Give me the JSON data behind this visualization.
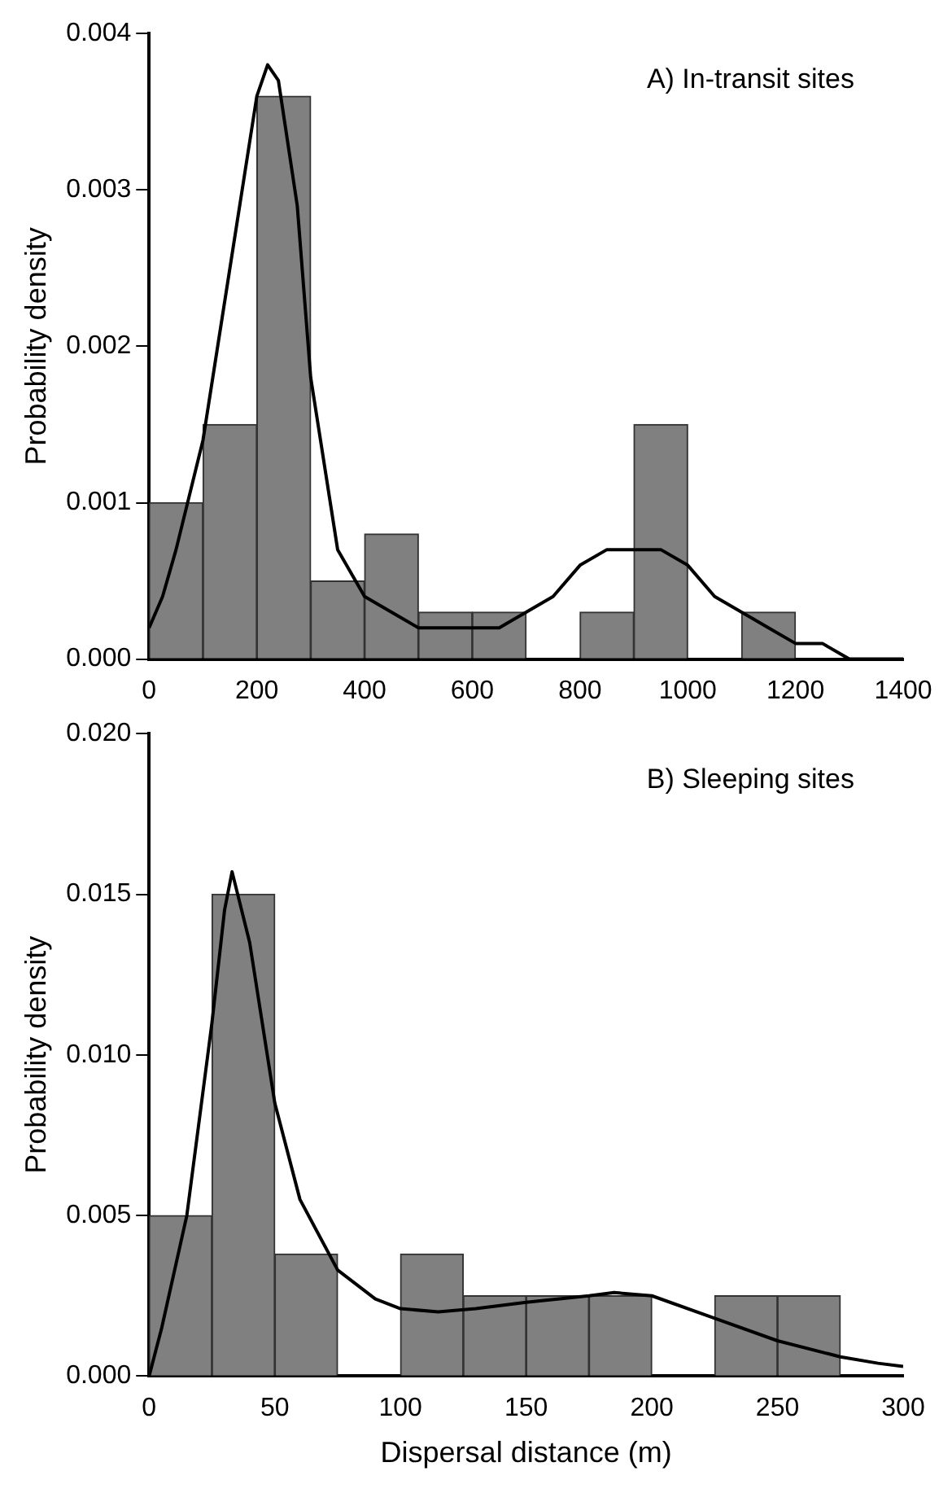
{
  "chart_data": [
    {
      "type": "histogram",
      "title": "A) In-transit sites",
      "ylabel": "Probability density",
      "bins": [
        0,
        100,
        200,
        300,
        400,
        500,
        600,
        700,
        800,
        900,
        1000,
        1100,
        1200
      ],
      "values": [
        0.001,
        0.0015,
        0.0036,
        0.0005,
        0.0008,
        0.0003,
        0.0003,
        0,
        0.0003,
        0.0015,
        0,
        0.0003
      ],
      "color": "#808080",
      "series": [
        {
          "type": "line",
          "color": "#000000",
          "x": [
            0,
            25,
            50,
            100,
            150,
            200,
            220,
            240,
            275,
            300,
            350,
            400,
            450,
            500,
            550,
            600,
            650,
            700,
            750,
            800,
            850,
            900,
            950,
            1000,
            1050,
            1100,
            1150,
            1200,
            1250,
            1300,
            1400
          ],
          "values": [
            0.0002,
            0.0004,
            0.0007,
            0.0014,
            0.0025,
            0.0036,
            0.0038,
            0.0037,
            0.0029,
            0.0018,
            0.0007,
            0.0004,
            0.0003,
            0.0002,
            0.0002,
            0.0002,
            0.0002,
            0.0003,
            0.0004,
            0.0006,
            0.0007,
            0.0007,
            0.0007,
            0.0006,
            0.0004,
            0.0003,
            0.0002,
            0.0001,
            0.0001,
            0,
            0
          ]
        }
      ],
      "xlim": [
        0,
        1400
      ],
      "xticks": [
        0,
        200,
        400,
        600,
        800,
        1000,
        1200,
        1400
      ],
      "ylim": [
        0,
        0.004
      ],
      "yticks": [
        {
          "value": 0,
          "label": "0.000"
        },
        {
          "value": 0.001,
          "label": "0.001"
        },
        {
          "value": 0.002,
          "label": "0.002"
        },
        {
          "value": 0.003,
          "label": "0.003"
        },
        {
          "value": 0.004,
          "label": "0.004"
        }
      ]
    },
    {
      "type": "histogram",
      "title": "B) Sleeping sites",
      "xlabel": "Dispersal distance (m)",
      "ylabel": "Probability density",
      "bins": [
        0,
        25,
        50,
        75,
        100,
        125,
        150,
        175,
        200,
        225,
        250,
        275
      ],
      "values": [
        0.005,
        0.015,
        0.0038,
        0,
        0.0038,
        0.0025,
        0.0025,
        0.0025,
        0,
        0.0025,
        0.0025
      ],
      "color": "#808080",
      "series": [
        {
          "type": "line",
          "color": "#000000",
          "x": [
            0,
            5,
            15,
            25,
            30,
            33,
            40,
            50,
            60,
            75,
            90,
            100,
            115,
            130,
            150,
            175,
            185,
            200,
            225,
            250,
            275,
            290,
            300
          ],
          "values": [
            0,
            0.0015,
            0.005,
            0.011,
            0.0145,
            0.0157,
            0.0135,
            0.0085,
            0.0055,
            0.0033,
            0.0024,
            0.0021,
            0.002,
            0.0021,
            0.0023,
            0.0025,
            0.0026,
            0.0025,
            0.0018,
            0.0011,
            0.0006,
            0.0004,
            0.0003
          ]
        }
      ],
      "xlim": [
        0,
        300
      ],
      "xticks": [
        0,
        50,
        100,
        150,
        200,
        250,
        300
      ],
      "ylim": [
        0,
        0.02
      ],
      "yticks": [
        {
          "value": 0,
          "label": "0.000"
        },
        {
          "value": 0.005,
          "label": "0.005"
        },
        {
          "value": 0.01,
          "label": "0.010"
        },
        {
          "value": 0.015,
          "label": "0.015"
        },
        {
          "value": 0.02,
          "label": "0.020"
        }
      ]
    }
  ]
}
